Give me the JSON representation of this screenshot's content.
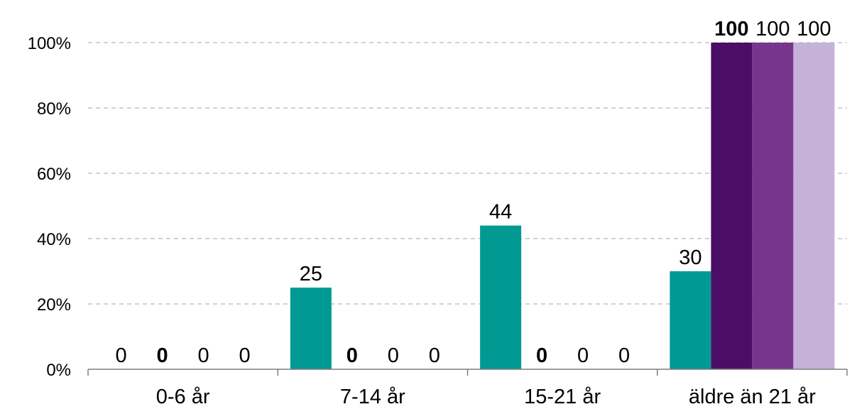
{
  "chart_data": {
    "type": "bar",
    "categories": [
      "0-6 år",
      "7-14 år",
      "15-21 år",
      "äldre än 21 år"
    ],
    "series": [
      {
        "values": [
          0,
          25,
          44,
          30
        ],
        "color": "#009a93",
        "label_bold": false
      },
      {
        "values": [
          0,
          0,
          0,
          100
        ],
        "color": "#4b0d66",
        "label_bold": true
      },
      {
        "values": [
          0,
          0,
          0,
          100
        ],
        "color": "#77368c",
        "label_bold": false
      },
      {
        "values": [
          0,
          0,
          0,
          100
        ],
        "color": "#c4b2d9",
        "label_bold": false
      }
    ],
    "data_labels": [
      [
        "0",
        "25",
        "44",
        "30"
      ],
      [
        "0",
        "0",
        "0",
        "100"
      ],
      [
        "0",
        "0",
        "0",
        "100"
      ],
      [
        "0",
        "0",
        "0",
        "100"
      ]
    ],
    "y_ticks": [
      0,
      20,
      40,
      60,
      80,
      100
    ],
    "y_tick_labels": [
      "0%",
      "20%",
      "40%",
      "60%",
      "80%",
      "100%"
    ],
    "ylim": [
      0,
      100
    ],
    "grid": true,
    "legend": false
  }
}
